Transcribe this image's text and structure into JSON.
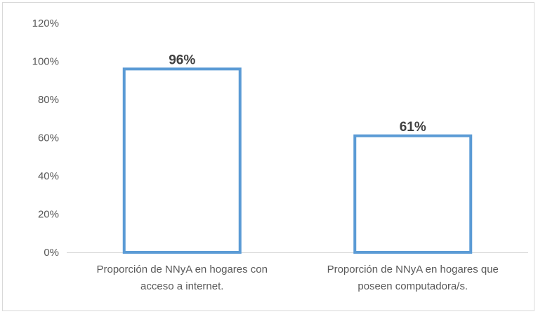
{
  "chart_data": {
    "type": "bar",
    "title": "",
    "xlabel": "",
    "ylabel": "",
    "ylim": [
      0,
      120
    ],
    "yticks": [
      "0%",
      "20%",
      "40%",
      "60%",
      "80%",
      "100%",
      "120%"
    ],
    "ytick_values": [
      0,
      20,
      40,
      60,
      80,
      100,
      120
    ],
    "grid": false,
    "legend": "none",
    "bar_style": "outline",
    "bar_outline_color": "#5B9BD5",
    "bar_fill_color": "#ffffff",
    "categories": [
      [
        "Proporción de NNyA en hogares con",
        "acceso a internet."
      ],
      [
        "Proporción de NNyA en hogares que",
        "poseen computadora/s."
      ]
    ],
    "values": [
      96,
      61
    ],
    "data_labels": [
      "96%",
      "61%"
    ]
  }
}
